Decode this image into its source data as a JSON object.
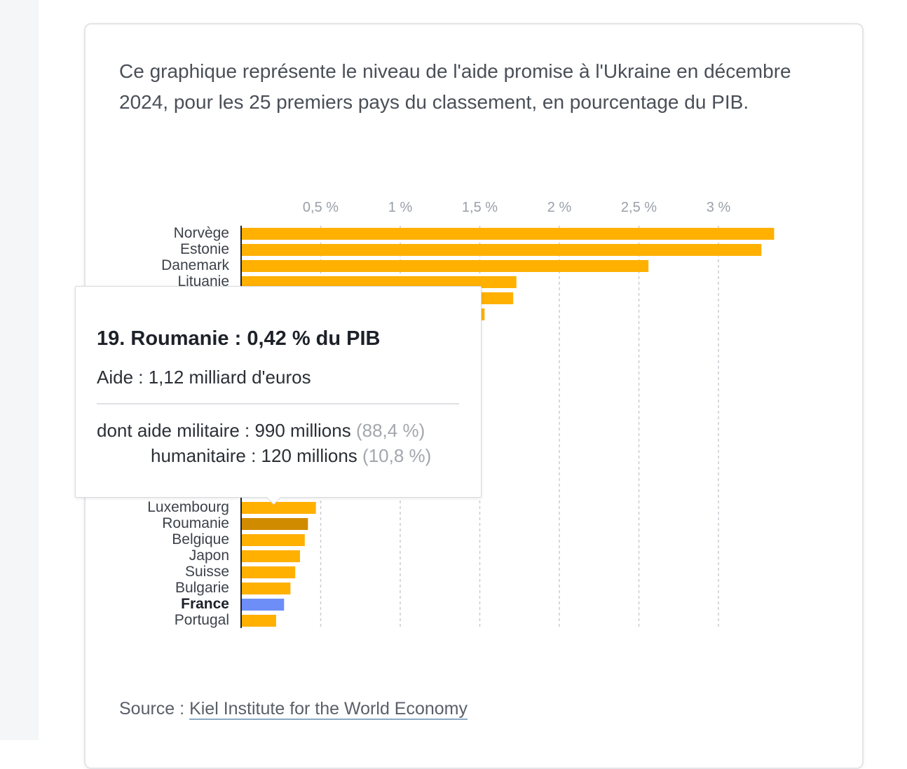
{
  "intro_text": "Ce graphique représente le niveau de l'aide promise à l'Ukraine en décembre 2024, pour les 25 premiers pays du classement, en pourcentage du PIB.",
  "source": {
    "label": "Source :",
    "link_text": "Kiel Institute for the World Economy"
  },
  "tooltip": {
    "title": "19. Roumanie : 0,42 % du PIB",
    "aid": "Aide : 1,12 milliard d'euros",
    "military_label": "dont aide militaire : 990 millions",
    "military_pct": "(88,4 %)",
    "humanitarian_label": "humanitaire : 120 millions",
    "humanitarian_pct": "(10,8 %)"
  },
  "colors": {
    "bar": "#ffb000",
    "highlight": "#d18b00",
    "france": "#6e8ef7",
    "grid": "#c8ccd2",
    "tick": "#9aa0a8",
    "label": "#3c414a"
  },
  "chart_data": {
    "type": "bar",
    "orientation": "horizontal",
    "title": "",
    "xlabel": "",
    "ylabel": "",
    "xlim": [
      0,
      3.5
    ],
    "grid": true,
    "tick_values": [
      0.5,
      1,
      1.5,
      2,
      2.5,
      3
    ],
    "tick_labels": [
      "0,5 %",
      "1 %",
      "1,5 %",
      "2 %",
      "2,5 %",
      "3 %"
    ],
    "categories": [
      "Norvège",
      "Estonie",
      "Danemark",
      "Lituanie",
      "",
      "",
      "",
      "",
      "",
      "",
      "",
      "",
      "",
      "",
      "",
      "",
      "",
      "Luxembourg",
      "Roumanie",
      "Belgique",
      "Japon",
      "Suisse",
      "Bulgarie",
      "France",
      "Portugal"
    ],
    "values": [
      3.35,
      3.27,
      2.56,
      1.73,
      1.71,
      1.53,
      null,
      null,
      null,
      null,
      null,
      null,
      null,
      null,
      null,
      null,
      null,
      0.47,
      0.42,
      0.4,
      0.37,
      0.34,
      0.31,
      0.27,
      0.22
    ],
    "highlighted": "Roumanie",
    "emphasized": "France"
  }
}
